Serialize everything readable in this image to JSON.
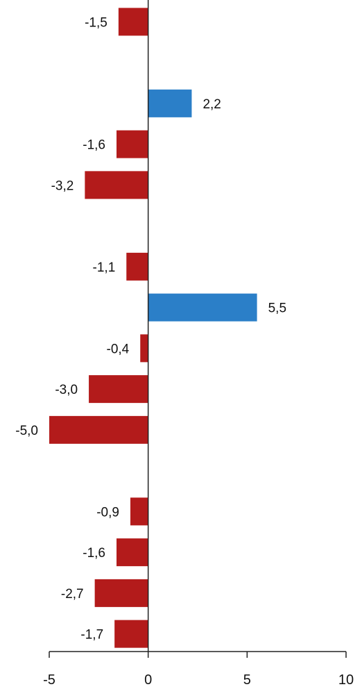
{
  "chart_data": {
    "type": "bar",
    "orientation": "horizontal",
    "categories": [
      "",
      "",
      "",
      "",
      "",
      "",
      "",
      "",
      "",
      "",
      "",
      "",
      "",
      "",
      "",
      ""
    ],
    "values": [
      -1.5,
      null,
      2.2,
      -1.6,
      -3.2,
      null,
      -1.1,
      5.5,
      -0.4,
      -3.0,
      -5.0,
      null,
      -0.9,
      -1.6,
      -2.7,
      -1.7
    ],
    "data_labels": [
      "-1,5",
      "",
      "2,2",
      "-1,6",
      "-3,2",
      "",
      "-1,1",
      "5,5",
      "-0,4",
      "-3,0",
      "-5,0",
      "",
      "-0,9",
      "-1,6",
      "-2,7",
      "-1,7"
    ],
    "xlim": [
      -5,
      10
    ],
    "x_ticks": [
      -5,
      0,
      5,
      10
    ],
    "x_tick_labels": [
      "-5",
      "0",
      "5",
      "10"
    ],
    "colors": {
      "positive": "#2b7fc8",
      "negative": "#b31b1b",
      "axis": "#222222"
    },
    "grid": false,
    "legend": "none"
  }
}
